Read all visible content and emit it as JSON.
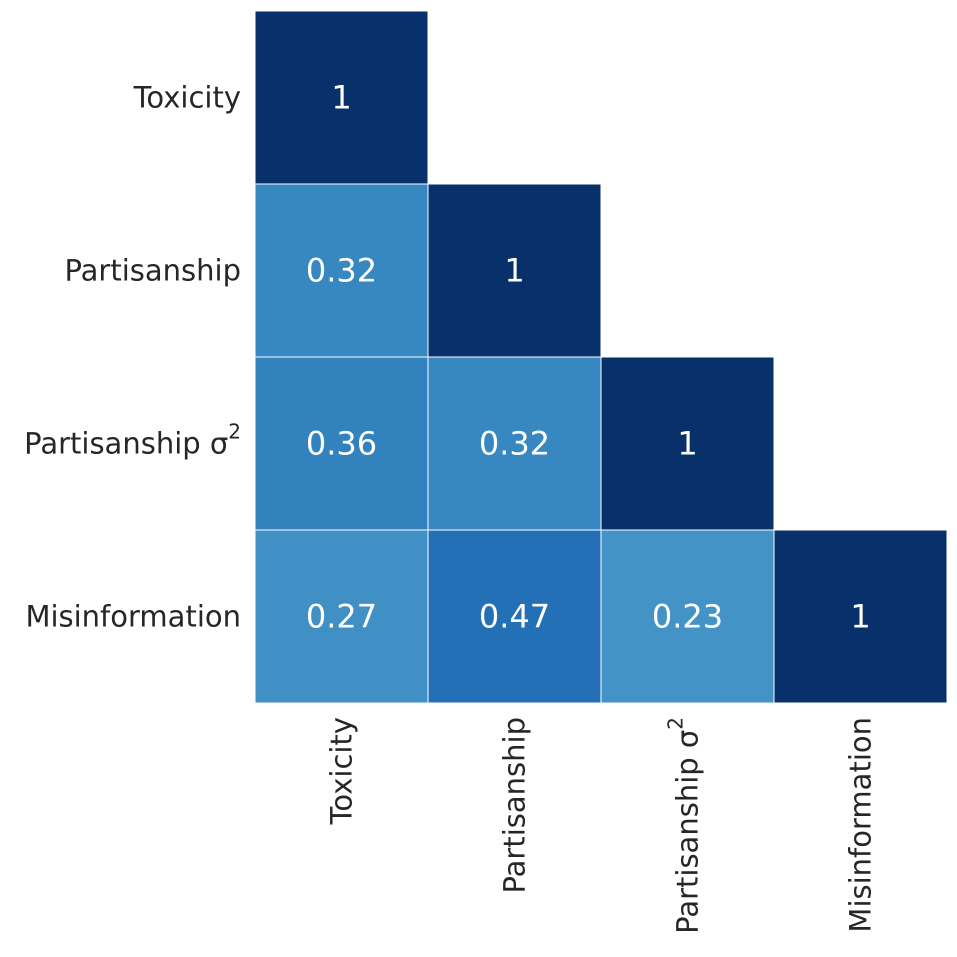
{
  "chart_data": {
    "type": "heatmap",
    "title": "",
    "xlabel": "",
    "ylabel": "",
    "mask": "upper-triangle",
    "colorscale": "Blues",
    "colorbar": false,
    "grid": false,
    "cell_border_color": "#ffffff",
    "annotation_color": "#ffffff",
    "rows": [
      {
        "label": "Toxicity",
        "label_sup": ""
      },
      {
        "label": "Partisanship",
        "label_sup": ""
      },
      {
        "label": "Partisanship σ",
        "label_sup": "2"
      },
      {
        "label": "Misinformation",
        "label_sup": ""
      }
    ],
    "columns": [
      {
        "label": "Toxicity",
        "label_sup": ""
      },
      {
        "label": "Partisanship",
        "label_sup": ""
      },
      {
        "label": "Partisanship σ",
        "label_sup": "2"
      },
      {
        "label": "Misinformation",
        "label_sup": ""
      }
    ],
    "values": [
      [
        1,
        null,
        null,
        null
      ],
      [
        0.32,
        1,
        null,
        null
      ],
      [
        0.36,
        0.32,
        1,
        null
      ],
      [
        0.27,
        0.47,
        0.23,
        1
      ]
    ],
    "cell_text": [
      [
        "1",
        "",
        "",
        ""
      ],
      [
        "0.32",
        "1",
        "",
        ""
      ],
      [
        "0.36",
        "0.32",
        "1",
        ""
      ],
      [
        "0.27",
        "0.47",
        "0.23",
        "1"
      ]
    ],
    "cell_colors": [
      [
        "#08306b",
        null,
        null,
        null
      ],
      [
        "#3787c0",
        "#08306b",
        null,
        null
      ],
      [
        "#3282be",
        "#3787c0",
        "#08306b",
        null
      ],
      [
        "#4090c5",
        "#2370b6",
        "#4493c7",
        "#08306b"
      ]
    ]
  }
}
